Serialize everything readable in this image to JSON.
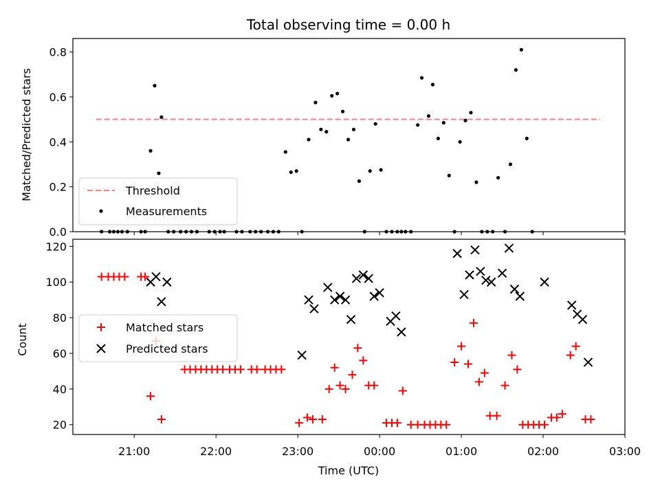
{
  "chart_data": [
    {
      "type": "scatter",
      "title": "Total observing time = 0.00 h",
      "ylabel": "Matched/Predicted stars",
      "xlabel": "",
      "xlim": [
        "20:15",
        "03:00"
      ],
      "ylim": [
        0,
        0.86
      ],
      "yticks": [
        "0.0",
        "0.2",
        "0.4",
        "0.6",
        "0.8"
      ],
      "legend_position": "lower-left",
      "threshold": {
        "name": "Threshold",
        "value": 0.5,
        "x_range": [
          "20:32",
          "03:00"
        ],
        "color": "#ff7f7f",
        "style": "dashed"
      },
      "series": [
        {
          "name": "Measurements",
          "color": "#000000",
          "marker": "dot",
          "points": [
            [
              "20:36",
              0
            ],
            [
              "20:42",
              0
            ],
            [
              "20:45",
              0
            ],
            [
              "20:48",
              0
            ],
            [
              "20:51",
              0
            ],
            [
              "20:55",
              0
            ],
            [
              "21:05",
              0
            ],
            [
              "21:08",
              0
            ],
            [
              "21:12",
              0.36
            ],
            [
              "21:15",
              0.65
            ],
            [
              "21:18",
              0.26
            ],
            [
              "21:20",
              0.51
            ],
            [
              "21:25",
              0
            ],
            [
              "21:29",
              0
            ],
            [
              "21:34",
              0
            ],
            [
              "21:38",
              0
            ],
            [
              "21:42",
              0
            ],
            [
              "21:46",
              0
            ],
            [
              "21:55",
              0
            ],
            [
              "21:59",
              0
            ],
            [
              "22:03",
              0
            ],
            [
              "22:06",
              0
            ],
            [
              "22:15",
              0
            ],
            [
              "22:19",
              0
            ],
            [
              "22:25",
              0
            ],
            [
              "22:29",
              0
            ],
            [
              "22:33",
              0
            ],
            [
              "22:38",
              0
            ],
            [
              "22:42",
              0
            ],
            [
              "22:46",
              0
            ],
            [
              "22:51",
              0.355
            ],
            [
              "22:55",
              0.265
            ],
            [
              "22:59",
              0.27
            ],
            [
              "23:03",
              0
            ],
            [
              "23:08",
              0.41
            ],
            [
              "23:13",
              0.575
            ],
            [
              "23:17",
              0.455
            ],
            [
              "23:21",
              0.445
            ],
            [
              "23:25",
              0.605
            ],
            [
              "23:29",
              0.615
            ],
            [
              "23:33",
              0.535
            ],
            [
              "23:37",
              0.41
            ],
            [
              "23:41",
              0.455
            ],
            [
              "23:45",
              0.225
            ],
            [
              "23:49",
              0
            ],
            [
              "23:53",
              0.27
            ],
            [
              "23:57",
              0.48
            ],
            [
              "00:01",
              0.275
            ],
            [
              "00:05",
              0
            ],
            [
              "00:09",
              0
            ],
            [
              "00:13",
              0
            ],
            [
              "00:16",
              0
            ],
            [
              "00:19",
              0
            ],
            [
              "00:23",
              0
            ],
            [
              "00:28",
              0.475
            ],
            [
              "00:31",
              0.685
            ],
            [
              "00:36",
              0.515
            ],
            [
              "00:39",
              0.655
            ],
            [
              "00:43",
              0.415
            ],
            [
              "00:47",
              0.485
            ],
            [
              "00:51",
              0.25
            ],
            [
              "00:55",
              0
            ],
            [
              "00:59",
              0.4
            ],
            [
              "01:03",
              0.495
            ],
            [
              "01:07",
              0.53
            ],
            [
              "01:11",
              0.22
            ],
            [
              "01:15",
              0
            ],
            [
              "01:19",
              0
            ],
            [
              "01:23",
              0
            ],
            [
              "01:27",
              0.24
            ],
            [
              "01:32",
              0
            ],
            [
              "01:36",
              0.3
            ],
            [
              "01:40",
              0.72
            ],
            [
              "01:44",
              0.81
            ],
            [
              "01:48",
              0.415
            ],
            [
              "01:52",
              0
            ]
          ]
        }
      ]
    },
    {
      "type": "scatter",
      "title": "",
      "ylabel": "Count",
      "xlabel": "Time (UTC)",
      "xlim": [
        "20:15",
        "03:00"
      ],
      "ylim": [
        14.5,
        124
      ],
      "yticks": [
        "20",
        "40",
        "60",
        "80",
        "100",
        "120"
      ],
      "xticks": [
        "21:00",
        "22:00",
        "23:00",
        "00:00",
        "01:00",
        "02:00",
        "03:00"
      ],
      "legend_position": "center-left",
      "series": [
        {
          "name": "Matched stars",
          "color": "#ff0000",
          "marker": "plus",
          "points": [
            [
              "20:36",
              103
            ],
            [
              "20:41",
              103
            ],
            [
              "20:45",
              103
            ],
            [
              "20:49",
              103
            ],
            [
              "20:53",
              103
            ],
            [
              "21:05",
              103
            ],
            [
              "21:08",
              103
            ],
            [
              "21:12",
              36
            ],
            [
              "21:16",
              67
            ],
            [
              "21:20",
              23
            ],
            [
              "21:37",
              51
            ],
            [
              "21:41",
              51
            ],
            [
              "21:45",
              51
            ],
            [
              "21:49",
              51
            ],
            [
              "21:53",
              51
            ],
            [
              "21:57",
              51
            ],
            [
              "22:01",
              51
            ],
            [
              "22:05",
              51
            ],
            [
              "22:10",
              51
            ],
            [
              "22:14",
              51
            ],
            [
              "22:18",
              51
            ],
            [
              "22:26",
              51
            ],
            [
              "22:30",
              51
            ],
            [
              "22:36",
              51
            ],
            [
              "22:40",
              51
            ],
            [
              "22:44",
              51
            ],
            [
              "22:48",
              51
            ],
            [
              "23:01",
              21
            ],
            [
              "23:07",
              24
            ],
            [
              "23:11",
              23
            ],
            [
              "23:18",
              23
            ],
            [
              "23:23",
              40
            ],
            [
              "23:27",
              52
            ],
            [
              "23:31",
              42
            ],
            [
              "23:35",
              40
            ],
            [
              "23:40",
              48
            ],
            [
              "23:44",
              63
            ],
            [
              "23:48",
              56
            ],
            [
              "23:52",
              42
            ],
            [
              "23:56",
              42
            ],
            [
              "00:05",
              21
            ],
            [
              "00:09",
              21
            ],
            [
              "00:13",
              21
            ],
            [
              "00:17",
              39
            ],
            [
              "00:23",
              20
            ],
            [
              "00:28",
              20
            ],
            [
              "00:33",
              20
            ],
            [
              "00:37",
              20
            ],
            [
              "00:41",
              20
            ],
            [
              "00:45",
              20
            ],
            [
              "00:49",
              20
            ],
            [
              "00:55",
              55
            ],
            [
              "01:00",
              64
            ],
            [
              "01:05",
              54
            ],
            [
              "01:09",
              77
            ],
            [
              "01:13",
              44
            ],
            [
              "01:17",
              49
            ],
            [
              "01:21",
              25
            ],
            [
              "01:26",
              25
            ],
            [
              "01:32",
              42
            ],
            [
              "01:37",
              59
            ],
            [
              "01:41",
              51
            ],
            [
              "01:45",
              20
            ],
            [
              "01:49",
              20
            ],
            [
              "01:53",
              20
            ],
            [
              "01:57",
              20
            ],
            [
              "02:01",
              20
            ],
            [
              "02:06",
              24
            ],
            [
              "02:10",
              24
            ],
            [
              "02:14",
              26
            ],
            [
              "02:20",
              59
            ],
            [
              "02:24",
              64
            ],
            [
              "02:31",
              23
            ],
            [
              "02:35",
              23
            ]
          ]
        },
        {
          "name": "Predicted stars",
          "color": "#000000",
          "marker": "x",
          "points": [
            [
              "21:12",
              100
            ],
            [
              "21:16",
              103
            ],
            [
              "21:20",
              89
            ],
            [
              "21:24",
              100
            ],
            [
              "23:03",
              59
            ],
            [
              "23:08",
              90
            ],
            [
              "23:12",
              85
            ],
            [
              "23:22",
              97
            ],
            [
              "23:27",
              90
            ],
            [
              "23:31",
              92
            ],
            [
              "23:35",
              90
            ],
            [
              "23:39",
              79
            ],
            [
              "23:43",
              102
            ],
            [
              "23:48",
              104
            ],
            [
              "23:52",
              102
            ],
            [
              "23:56",
              92
            ],
            [
              "00:00",
              94
            ],
            [
              "00:08",
              78
            ],
            [
              "00:12",
              81
            ],
            [
              "00:16",
              72
            ],
            [
              "00:57",
              116
            ],
            [
              "01:02",
              93
            ],
            [
              "01:06",
              104
            ],
            [
              "01:10",
              118
            ],
            [
              "01:14",
              106
            ],
            [
              "01:18",
              101
            ],
            [
              "01:22",
              100
            ],
            [
              "01:30",
              105
            ],
            [
              "01:35",
              119
            ],
            [
              "01:39",
              96
            ],
            [
              "01:43",
              92
            ],
            [
              "02:01",
              100
            ],
            [
              "02:21",
              87
            ],
            [
              "02:25",
              82
            ],
            [
              "02:29",
              79
            ],
            [
              "02:33",
              55
            ]
          ]
        }
      ]
    }
  ]
}
